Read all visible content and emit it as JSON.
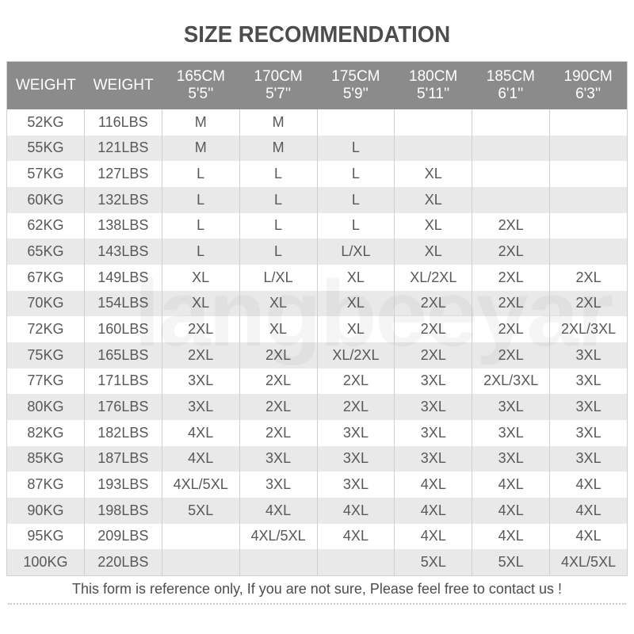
{
  "title": "SIZE RECOMMENDATION",
  "footer": "This form is reference only, If you are not sure, Please feel free to contact us !",
  "watermark": "langbeeyar",
  "colors": {
    "header_bg": "#8b8b8b",
    "header_text": "#ffffff",
    "row_stripe": "#e9e9e9",
    "cell_text": "#57585a",
    "title_text": "#4d4d4d",
    "border": "#cfcfcf"
  },
  "table": {
    "headers": [
      {
        "line1": "WEIGHT",
        "line2": ""
      },
      {
        "line1": "WEIGHT",
        "line2": ""
      },
      {
        "line1": "165CM",
        "line2": "5'5''"
      },
      {
        "line1": "170CM",
        "line2": "5'7''"
      },
      {
        "line1": "175CM",
        "line2": "5'9''"
      },
      {
        "line1": "180CM",
        "line2": "5'11''"
      },
      {
        "line1": "185CM",
        "line2": "6'1''"
      },
      {
        "line1": "190CM",
        "line2": "6'3''"
      }
    ],
    "rows": [
      {
        "kg": "52KG",
        "lbs": "116LBS",
        "sizes": [
          "M",
          "M",
          "",
          "",
          "",
          ""
        ]
      },
      {
        "kg": "55KG",
        "lbs": "121LBS",
        "sizes": [
          "M",
          "M",
          "L",
          "",
          "",
          ""
        ]
      },
      {
        "kg": "57KG",
        "lbs": "127LBS",
        "sizes": [
          "L",
          "L",
          "L",
          "XL",
          "",
          ""
        ]
      },
      {
        "kg": "60KG",
        "lbs": "132LBS",
        "sizes": [
          "L",
          "L",
          "L",
          "XL",
          "",
          ""
        ]
      },
      {
        "kg": "62KG",
        "lbs": "138LBS",
        "sizes": [
          "L",
          "L",
          "L",
          "XL",
          "2XL",
          ""
        ]
      },
      {
        "kg": "65KG",
        "lbs": "143LBS",
        "sizes": [
          "L",
          "L",
          "L/XL",
          "XL",
          "2XL",
          ""
        ]
      },
      {
        "kg": "67KG",
        "lbs": "149LBS",
        "sizes": [
          "XL",
          "L/XL",
          "XL",
          "XL/2XL",
          "2XL",
          "2XL"
        ]
      },
      {
        "kg": "70KG",
        "lbs": "154LBS",
        "sizes": [
          "XL",
          "XL",
          "XL",
          "2XL",
          "2XL",
          "2XL"
        ]
      },
      {
        "kg": "72KG",
        "lbs": "160LBS",
        "sizes": [
          "2XL",
          "XL",
          "XL",
          "2XL",
          "2XL",
          "2XL/3XL"
        ]
      },
      {
        "kg": "75KG",
        "lbs": "165LBS",
        "sizes": [
          "2XL",
          "2XL",
          "XL/2XL",
          "2XL",
          "2XL",
          "3XL"
        ]
      },
      {
        "kg": "77KG",
        "lbs": "171LBS",
        "sizes": [
          "3XL",
          "2XL",
          "2XL",
          "3XL",
          "2XL/3XL",
          "3XL"
        ]
      },
      {
        "kg": "80KG",
        "lbs": "176LBS",
        "sizes": [
          "3XL",
          "2XL",
          "2XL",
          "3XL",
          "3XL",
          "3XL"
        ]
      },
      {
        "kg": "82KG",
        "lbs": "182LBS",
        "sizes": [
          "4XL",
          "2XL",
          "3XL",
          "3XL",
          "3XL",
          "3XL"
        ]
      },
      {
        "kg": "85KG",
        "lbs": "187LBS",
        "sizes": [
          "4XL",
          "3XL",
          "3XL",
          "3XL",
          "3XL",
          "3XL"
        ]
      },
      {
        "kg": "87KG",
        "lbs": "193LBS",
        "sizes": [
          "4XL/5XL",
          "3XL",
          "3XL",
          "4XL",
          "4XL",
          "4XL"
        ]
      },
      {
        "kg": "90KG",
        "lbs": "198LBS",
        "sizes": [
          "5XL",
          "4XL",
          "4XL",
          "4XL",
          "4XL",
          "4XL"
        ]
      },
      {
        "kg": "95KG",
        "lbs": "209LBS",
        "sizes": [
          "",
          "4XL/5XL",
          "4XL",
          "4XL",
          "4XL",
          "4XL"
        ]
      },
      {
        "kg": "100KG",
        "lbs": "220LBS",
        "sizes": [
          "",
          "",
          "",
          "5XL",
          "5XL",
          "4XL/5XL"
        ]
      }
    ]
  },
  "chart_data": {
    "type": "table",
    "title": "SIZE RECOMMENDATION",
    "columns": [
      "WEIGHT",
      "WEIGHT",
      "165CM 5'5''",
      "170CM 5'7''",
      "175CM 5'9''",
      "180CM 5'11''",
      "185CM 6'1''",
      "190CM 6'3''"
    ],
    "rows": [
      [
        "52KG",
        "116LBS",
        "M",
        "M",
        "",
        "",
        "",
        ""
      ],
      [
        "55KG",
        "121LBS",
        "M",
        "M",
        "L",
        "",
        "",
        ""
      ],
      [
        "57KG",
        "127LBS",
        "L",
        "L",
        "L",
        "XL",
        "",
        ""
      ],
      [
        "60KG",
        "132LBS",
        "L",
        "L",
        "L",
        "XL",
        "",
        ""
      ],
      [
        "62KG",
        "138LBS",
        "L",
        "L",
        "L",
        "XL",
        "2XL",
        ""
      ],
      [
        "65KG",
        "143LBS",
        "L",
        "L",
        "L/XL",
        "XL",
        "2XL",
        ""
      ],
      [
        "67KG",
        "149LBS",
        "XL",
        "L/XL",
        "XL",
        "XL/2XL",
        "2XL",
        "2XL"
      ],
      [
        "70KG",
        "154LBS",
        "XL",
        "XL",
        "XL",
        "2XL",
        "2XL",
        "2XL"
      ],
      [
        "72KG",
        "160LBS",
        "2XL",
        "XL",
        "XL",
        "2XL",
        "2XL",
        "2XL/3XL"
      ],
      [
        "75KG",
        "165LBS",
        "2XL",
        "2XL",
        "XL/2XL",
        "2XL",
        "2XL",
        "3XL"
      ],
      [
        "77KG",
        "171LBS",
        "3XL",
        "2XL",
        "2XL",
        "3XL",
        "2XL/3XL",
        "3XL"
      ],
      [
        "80KG",
        "176LBS",
        "3XL",
        "2XL",
        "2XL",
        "3XL",
        "3XL",
        "3XL"
      ],
      [
        "82KG",
        "182LBS",
        "4XL",
        "2XL",
        "3XL",
        "3XL",
        "3XL",
        "3XL"
      ],
      [
        "85KG",
        "187LBS",
        "4XL",
        "3XL",
        "3XL",
        "3XL",
        "3XL",
        "3XL"
      ],
      [
        "87KG",
        "193LBS",
        "4XL/5XL",
        "3XL",
        "3XL",
        "4XL",
        "4XL",
        "4XL"
      ],
      [
        "90KG",
        "198LBS",
        "5XL",
        "4XL",
        "4XL",
        "4XL",
        "4XL",
        "4XL"
      ],
      [
        "95KG",
        "209LBS",
        "",
        "4XL/5XL",
        "4XL",
        "4XL",
        "4XL",
        "4XL"
      ],
      [
        "100KG",
        "220LBS",
        "",
        "",
        "",
        "5XL",
        "5XL",
        "4XL/5XL"
      ]
    ],
    "notes": "This form is reference only, If you are not sure, Please feel free to contact us !"
  }
}
